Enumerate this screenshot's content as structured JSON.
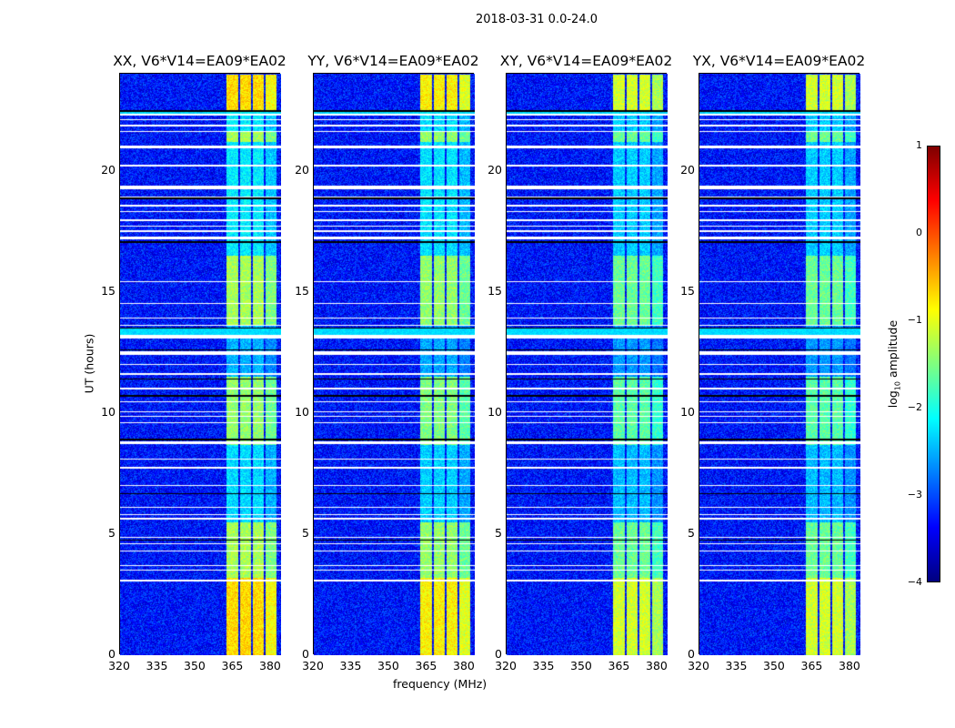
{
  "chart_data": {
    "type": "heatmap",
    "suptitle": "2018-03-31 0.0-24.0",
    "xlabel": "frequency (MHz)",
    "ylabel": "UT (hours)",
    "xlim": [
      320,
      384
    ],
    "ylim": [
      0,
      24
    ],
    "xticks": [
      "320",
      "335",
      "350",
      "365",
      "380"
    ],
    "yticks": [
      "0",
      "5",
      "10",
      "15",
      "20"
    ],
    "colorbar": {
      "label": "log10 amplitude",
      "label_main": "log",
      "label_sub": "10",
      "label_rest": " amplitude",
      "range": [
        -4,
        1
      ],
      "ticks": [
        "1",
        "0",
        "−1",
        "−2",
        "−3",
        "−4"
      ],
      "colormap": "jet"
    },
    "panels": [
      {
        "title": "XX, V6*V14=EA09*EA02",
        "band_scale": 1.0
      },
      {
        "title": "YY, V6*V14=EA09*EA02",
        "band_scale": 0.95
      },
      {
        "title": "XY, V6*V14=EA09*EA02",
        "band_scale": 0.85
      },
      {
        "title": "YX, V6*V14=EA09*EA02",
        "band_scale": 0.85
      }
    ],
    "background_level": -3.3,
    "rfi_channels_mhz": [
      [
        362,
        367
      ],
      [
        367.5,
        372
      ],
      [
        372.5,
        377
      ],
      [
        377.5,
        382
      ]
    ],
    "rfi_levels": [
      {
        "hours": [
          0,
          3.2
        ],
        "level": -0.7
      },
      {
        "hours": [
          3.2,
          5.5
        ],
        "level": -1.3
      },
      {
        "hours": [
          5.5,
          8.7
        ],
        "level": -2.3
      },
      {
        "hours": [
          8.7,
          11.5
        ],
        "level": -1.4
      },
      {
        "hours": [
          11.5,
          13.6
        ],
        "level": -2.5
      },
      {
        "hours": [
          13.6,
          16.5
        ],
        "level": -1.3
      },
      {
        "hours": [
          16.5,
          21.2
        ],
        "level": -2.2
      },
      {
        "hours": [
          21.2,
          21.6
        ],
        "level": -1.3
      },
      {
        "hours": [
          21.6,
          22.5
        ],
        "level": -2.2
      },
      {
        "hours": [
          22.5,
          24
        ],
        "level": -0.7
      }
    ],
    "flagged_hours": [
      [
        22.3,
        22.35
      ],
      [
        22.1,
        22.15
      ],
      [
        21.85,
        21.9
      ],
      [
        21.6,
        21.65
      ],
      [
        20.95,
        21.05
      ],
      [
        20.2,
        20.25
      ],
      [
        19.25,
        19.4
      ],
      [
        18.9,
        18.95
      ],
      [
        18.55,
        18.6
      ],
      [
        18.3,
        18.35
      ],
      [
        17.95,
        18.0
      ],
      [
        17.7,
        17.75
      ],
      [
        17.5,
        17.55
      ],
      [
        17.2,
        17.3
      ],
      [
        15.4,
        15.45
      ],
      [
        14.5,
        14.55
      ],
      [
        13.9,
        13.95
      ],
      [
        13.6,
        13.65
      ],
      [
        13.1,
        13.25
      ],
      [
        12.4,
        12.55
      ],
      [
        12.0,
        12.05
      ],
      [
        11.6,
        11.65
      ],
      [
        11.0,
        11.05
      ],
      [
        10.45,
        10.5
      ],
      [
        10.05,
        10.1
      ],
      [
        9.85,
        9.9
      ],
      [
        9.6,
        9.65
      ],
      [
        8.75,
        8.85
      ],
      [
        8.1,
        8.15
      ],
      [
        7.7,
        7.8
      ],
      [
        7.0,
        7.05
      ],
      [
        6.1,
        6.15
      ],
      [
        5.8,
        5.85
      ],
      [
        5.6,
        5.7
      ],
      [
        4.85,
        4.9
      ],
      [
        4.6,
        4.65
      ],
      [
        4.3,
        4.35
      ],
      [
        3.7,
        3.75
      ],
      [
        3.5,
        3.55
      ],
      [
        3.05,
        3.15
      ]
    ],
    "scan_gaps_hours": [
      [
        22.45,
        22.5
      ],
      [
        18.85,
        18.9
      ],
      [
        17.05,
        17.1
      ],
      [
        13.5,
        13.55
      ],
      [
        12.6,
        12.65
      ],
      [
        11.4,
        11.45
      ],
      [
        10.7,
        10.75
      ],
      [
        8.9,
        8.95
      ],
      [
        6.65,
        6.7
      ],
      [
        4.75,
        4.8
      ]
    ]
  }
}
